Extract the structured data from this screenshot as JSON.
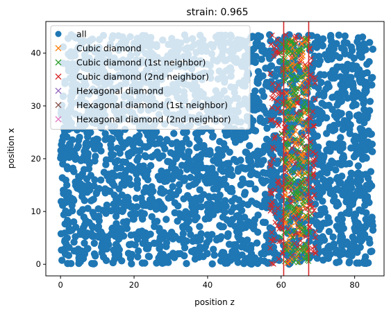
{
  "chart_data": {
    "type": "scatter",
    "title": "strain: 0.965",
    "xlabel": "position z",
    "ylabel": "position x",
    "xlim": [
      -4,
      88
    ],
    "ylim": [
      -2.2,
      46
    ],
    "xticks": [
      0,
      20,
      40,
      60,
      80
    ],
    "yticks": [
      0,
      10,
      20,
      30,
      40
    ],
    "grid": false,
    "legend_position": "top-left",
    "colors": {
      "all": "#1f77b4",
      "cubic": "#ff7f0e",
      "cubic_1st": "#2ca02c",
      "cubic_2nd": "#d62728",
      "hex": "#9467bd",
      "hex_1st": "#8c564b",
      "hex_2nd": "#e377c2",
      "vline": "#d62728"
    },
    "series": [
      {
        "name": "all",
        "marker": "o",
        "x_range": [
          0,
          85
        ],
        "y_range": [
          0,
          43.5
        ]
      },
      {
        "name": "Cubic diamond",
        "marker": "x",
        "x_range": [
          61,
          67
        ],
        "y_range": [
          0,
          43
        ]
      },
      {
        "name": "Cubic diamond (1st neighbor)",
        "marker": "x",
        "x_range": [
          60,
          68
        ],
        "y_range": [
          0,
          43
        ]
      },
      {
        "name": "Cubic diamond (2nd neighbor)",
        "marker": "x",
        "x_range": [
          57,
          69.5
        ],
        "y_range": [
          0,
          43.5
        ]
      },
      {
        "name": "Hexagonal diamond",
        "marker": "x"
      },
      {
        "name": "Hexagonal diamond (1st neighbor)",
        "marker": "x"
      },
      {
        "name": "Hexagonal diamond (2nd neighbor)",
        "marker": "x"
      }
    ],
    "vlines": [
      60.7,
      67.5
    ]
  }
}
